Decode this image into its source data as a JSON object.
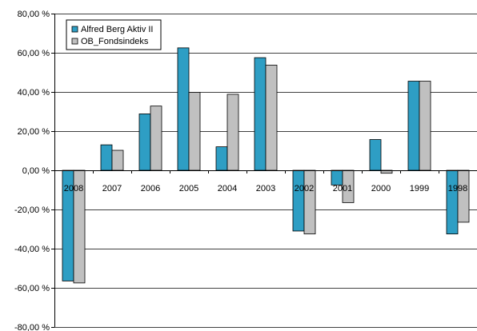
{
  "chart_data": {
    "type": "bar",
    "title": "",
    "xlabel": "",
    "ylabel": "",
    "categories": [
      "2008",
      "2007",
      "2006",
      "2005",
      "2004",
      "2003",
      "2002",
      "2001",
      "2000",
      "1999",
      "1998"
    ],
    "series": [
      {
        "name": "Alfred Berg Aktiv II",
        "color": "#2e9ec4",
        "values": [
          -56.5,
          13.0,
          28.8,
          62.5,
          12.0,
          57.5,
          -31.0,
          -7.5,
          15.7,
          45.5,
          -32.5
        ]
      },
      {
        "name": "OB_Fondsindeks",
        "color": "#c0c0c0",
        "values": [
          -57.5,
          10.2,
          32.8,
          39.8,
          38.8,
          53.7,
          -32.5,
          -16.5,
          -1.5,
          45.5,
          -26.5
        ]
      }
    ],
    "ylim": [
      -80,
      80
    ],
    "yticks": [
      -80,
      -60,
      -40,
      -20,
      0,
      20,
      40,
      60,
      80
    ],
    "ytick_labels": [
      "-80,00 %",
      "-60,00 %",
      "-40,00 %",
      "-20,00 %",
      "0,00 %",
      "20,00 %",
      "40,00 %",
      "60,00 %",
      "80,00 %"
    ],
    "grid": true,
    "legend_position": "top-left"
  }
}
